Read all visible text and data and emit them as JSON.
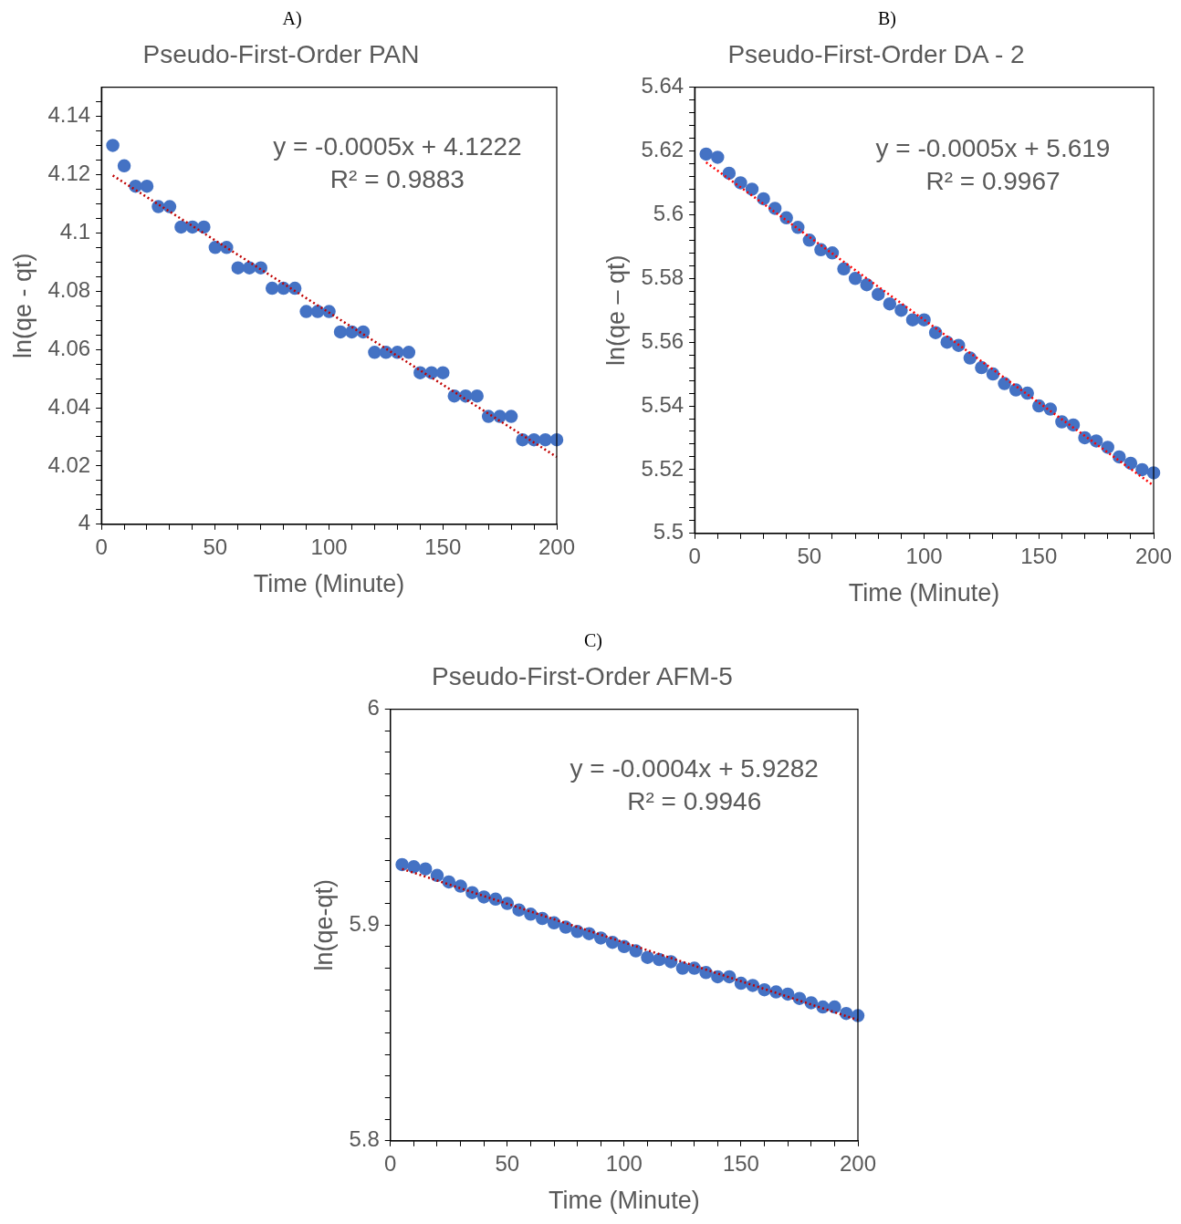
{
  "chart_data": [
    {
      "type": "scatter",
      "title": "Pseudo-First-Order PAN",
      "xlabel": "Time (Minute)",
      "ylabel": "ln(qe - qt)",
      "annotations": [
        "A)",
        "y = -0.0005x + 4.1222",
        "R² = 0.9883"
      ],
      "xlim": [
        0,
        200
      ],
      "xticks": [
        0,
        {
          "value": 10,
          "label": null
        },
        {
          "value": 20,
          "label": null
        },
        {
          "value": 30,
          "label": null
        },
        {
          "value": 40,
          "label": null
        },
        50,
        {
          "value": 60,
          "label": null
        },
        {
          "value": 70,
          "label": null
        },
        {
          "value": 80,
          "label": null
        },
        {
          "value": 90,
          "label": null
        },
        100,
        {
          "value": 110,
          "label": null
        },
        {
          "value": 120,
          "label": null
        },
        {
          "value": 130,
          "label": null
        },
        {
          "value": 140,
          "label": null
        },
        150,
        {
          "value": 160,
          "label": null
        },
        {
          "value": 170,
          "label": null
        },
        {
          "value": 180,
          "label": null
        },
        {
          "value": 190,
          "label": null
        },
        200
      ],
      "ylim": [
        4,
        4.15
      ],
      "yticks": [
        4,
        {
          "value": 4.005,
          "label": null
        },
        {
          "value": 4.01,
          "label": null
        },
        {
          "value": 4.015,
          "label": null
        },
        4.02,
        {
          "value": 4.025,
          "label": null
        },
        {
          "value": 4.03,
          "label": null
        },
        {
          "value": 4.035,
          "label": null
        },
        4.04,
        {
          "value": 4.045,
          "label": null
        },
        {
          "value": 4.05,
          "label": null
        },
        {
          "value": 4.055,
          "label": null
        },
        4.06,
        {
          "value": 4.065,
          "label": null
        },
        {
          "value": 4.07,
          "label": null
        },
        {
          "value": 4.075,
          "label": null
        },
        4.08,
        {
          "value": 4.085,
          "label": null
        },
        {
          "value": 4.09,
          "label": null
        },
        {
          "value": 4.095,
          "label": null
        },
        4.1,
        {
          "value": 4.105,
          "label": null
        },
        {
          "value": 4.11,
          "label": null
        },
        {
          "value": 4.115,
          "label": null
        },
        4.12,
        {
          "value": 4.125,
          "label": null
        },
        {
          "value": 4.13,
          "label": null
        },
        {
          "value": 4.135,
          "label": null
        },
        4.14,
        {
          "value": 4.145,
          "label": null
        }
      ],
      "legend": false,
      "grid": false,
      "series": [
        {
          "type": "scatter",
          "color": "#4472c4",
          "marker": "circle",
          "x": [
            5,
            10,
            15,
            20,
            25,
            30,
            35,
            40,
            45,
            50,
            55,
            60,
            65,
            70,
            75,
            80,
            85,
            90,
            95,
            100,
            105,
            110,
            115,
            120,
            125,
            130,
            135,
            140,
            145,
            150,
            155,
            160,
            165,
            170,
            175,
            180,
            185,
            190,
            195,
            200
          ],
          "values": [
            4.13,
            4.123,
            4.116,
            4.116,
            4.109,
            4.109,
            4.102,
            4.102,
            4.102,
            4.095,
            4.095,
            4.088,
            4.088,
            4.088,
            4.081,
            4.081,
            4.081,
            4.073,
            4.073,
            4.073,
            4.066,
            4.066,
            4.066,
            4.059,
            4.059,
            4.059,
            4.059,
            4.052,
            4.052,
            4.052,
            4.044,
            4.044,
            4.044,
            4.037,
            4.037,
            4.037,
            4.029,
            4.029,
            4.029,
            4.029
          ]
        },
        {
          "type": "line",
          "color": "#c00000",
          "marker": "none",
          "line_style": "dotted",
          "x": [
            5,
            200
          ],
          "values": [
            4.1197,
            4.0231
          ]
        }
      ]
    },
    {
      "type": "scatter",
      "title": "Pseudo-First-Order DA - 2",
      "xlabel": "Time (Minute)",
      "ylabel": "ln(qe – qt)",
      "annotations": [
        "B)",
        "y = -0.0005x + 5.619",
        "R² = 0.9967"
      ],
      "xlim": [
        0,
        200
      ],
      "xticks": [
        0,
        {
          "value": 10,
          "label": null
        },
        {
          "value": 20,
          "label": null
        },
        {
          "value": 30,
          "label": null
        },
        {
          "value": 40,
          "label": null
        },
        50,
        {
          "value": 60,
          "label": null
        },
        {
          "value": 70,
          "label": null
        },
        {
          "value": 80,
          "label": null
        },
        {
          "value": 90,
          "label": null
        },
        100,
        {
          "value": 110,
          "label": null
        },
        {
          "value": 120,
          "label": null
        },
        {
          "value": 130,
          "label": null
        },
        {
          "value": 140,
          "label": null
        },
        150,
        {
          "value": 160,
          "label": null
        },
        {
          "value": 170,
          "label": null
        },
        {
          "value": 180,
          "label": null
        },
        {
          "value": 190,
          "label": null
        },
        200
      ],
      "ylim": [
        5.5,
        5.64
      ],
      "yticks": [
        5.5,
        {
          "value": 5.504,
          "label": null
        },
        {
          "value": 5.508,
          "label": null
        },
        {
          "value": 5.512,
          "label": null
        },
        {
          "value": 5.516,
          "label": null
        },
        5.52,
        {
          "value": 5.524,
          "label": null
        },
        {
          "value": 5.528,
          "label": null
        },
        {
          "value": 5.532,
          "label": null
        },
        {
          "value": 5.536,
          "label": null
        },
        5.54,
        {
          "value": 5.544,
          "label": null
        },
        {
          "value": 5.548,
          "label": null
        },
        {
          "value": 5.552,
          "label": null
        },
        {
          "value": 5.556,
          "label": null
        },
        5.56,
        {
          "value": 5.564,
          "label": null
        },
        {
          "value": 5.568,
          "label": null
        },
        {
          "value": 5.572,
          "label": null
        },
        {
          "value": 5.576,
          "label": null
        },
        5.58,
        {
          "value": 5.584,
          "label": null
        },
        {
          "value": 5.588,
          "label": null
        },
        {
          "value": 5.592,
          "label": null
        },
        {
          "value": 5.596,
          "label": null
        },
        5.6,
        {
          "value": 5.604,
          "label": null
        },
        {
          "value": 5.608,
          "label": null
        },
        {
          "value": 5.612,
          "label": null
        },
        {
          "value": 5.616,
          "label": null
        },
        5.62,
        {
          "value": 5.624,
          "label": null
        },
        {
          "value": 5.628,
          "label": null
        },
        {
          "value": 5.632,
          "label": null
        },
        {
          "value": 5.636,
          "label": null
        },
        5.64
      ],
      "legend": false,
      "grid": false,
      "series": [
        {
          "type": "scatter",
          "color": "#4472c4",
          "marker": "circle",
          "x": [
            5,
            10,
            15,
            20,
            25,
            30,
            35,
            40,
            45,
            50,
            55,
            60,
            65,
            70,
            75,
            80,
            85,
            90,
            95,
            100,
            105,
            110,
            115,
            120,
            125,
            130,
            135,
            140,
            145,
            150,
            155,
            160,
            165,
            170,
            175,
            180,
            185,
            190,
            195,
            200
          ],
          "values": [
            5.619,
            5.618,
            5.613,
            5.61,
            5.608,
            5.605,
            5.602,
            5.599,
            5.596,
            5.592,
            5.589,
            5.588,
            5.583,
            5.58,
            5.578,
            5.575,
            5.572,
            5.57,
            5.567,
            5.567,
            5.563,
            5.56,
            5.559,
            5.555,
            5.552,
            5.55,
            5.547,
            5.545,
            5.544,
            5.54,
            5.539,
            5.535,
            5.534,
            5.53,
            5.529,
            5.527,
            5.524,
            5.522,
            5.52,
            5.519
          ]
        },
        {
          "type": "line",
          "color": "#ff0000",
          "marker": "none",
          "line_style": "dotted",
          "x": [
            5,
            200
          ],
          "values": [
            5.6164,
            5.515
          ]
        }
      ]
    },
    {
      "type": "scatter",
      "title": "Pseudo-First-Order AFM-5",
      "xlabel": "Time (Minute)",
      "ylabel": "ln(qe-qt)",
      "annotations": [
        "C)",
        "y = -0.0004x + 5.9282",
        "R² = 0.9946"
      ],
      "xlim": [
        0,
        200
      ],
      "xticks": [
        0,
        {
          "value": 10,
          "label": null
        },
        {
          "value": 20,
          "label": null
        },
        {
          "value": 30,
          "label": null
        },
        {
          "value": 40,
          "label": null
        },
        50,
        {
          "value": 60,
          "label": null
        },
        {
          "value": 70,
          "label": null
        },
        {
          "value": 80,
          "label": null
        },
        {
          "value": 90,
          "label": null
        },
        100,
        {
          "value": 110,
          "label": null
        },
        {
          "value": 120,
          "label": null
        },
        {
          "value": 130,
          "label": null
        },
        {
          "value": 140,
          "label": null
        },
        150,
        {
          "value": 160,
          "label": null
        },
        {
          "value": 170,
          "label": null
        },
        {
          "value": 180,
          "label": null
        },
        {
          "value": 190,
          "label": null
        },
        200
      ],
      "ylim": [
        5.8,
        6
      ],
      "yticks": [
        5.8,
        {
          "value": 5.81,
          "label": null
        },
        {
          "value": 5.82,
          "label": null
        },
        {
          "value": 5.83,
          "label": null
        },
        {
          "value": 5.84,
          "label": null
        },
        {
          "value": 5.85,
          "label": null
        },
        {
          "value": 5.86,
          "label": null
        },
        {
          "value": 5.87,
          "label": null
        },
        {
          "value": 5.88,
          "label": null
        },
        {
          "value": 5.89,
          "label": null
        },
        5.9,
        {
          "value": 5.91,
          "label": null
        },
        {
          "value": 5.92,
          "label": null
        },
        {
          "value": 5.93,
          "label": null
        },
        {
          "value": 5.94,
          "label": null
        },
        {
          "value": 5.95,
          "label": null
        },
        {
          "value": 5.96,
          "label": null
        },
        {
          "value": 5.97,
          "label": null
        },
        {
          "value": 5.98,
          "label": null
        },
        {
          "value": 5.99,
          "label": null
        },
        6
      ],
      "legend": false,
      "grid": false,
      "series": [
        {
          "type": "scatter",
          "color": "#4472c4",
          "marker": "circle",
          "x": [
            5,
            10,
            15,
            20,
            25,
            30,
            35,
            40,
            45,
            50,
            55,
            60,
            65,
            70,
            75,
            80,
            85,
            90,
            95,
            100,
            105,
            110,
            115,
            120,
            125,
            130,
            135,
            140,
            145,
            150,
            155,
            160,
            165,
            170,
            175,
            180,
            185,
            190,
            195,
            200
          ],
          "values": [
            5.928,
            5.927,
            5.926,
            5.923,
            5.92,
            5.918,
            5.915,
            5.913,
            5.912,
            5.91,
            5.907,
            5.905,
            5.903,
            5.901,
            5.899,
            5.897,
            5.896,
            5.894,
            5.892,
            5.89,
            5.888,
            5.885,
            5.884,
            5.883,
            5.88,
            5.88,
            5.878,
            5.876,
            5.876,
            5.873,
            5.872,
            5.87,
            5.869,
            5.868,
            5.866,
            5.864,
            5.862,
            5.862,
            5.859,
            5.858
          ]
        },
        {
          "type": "line",
          "color": "#c00000",
          "marker": "none",
          "line_style": "dotted",
          "x": [
            5,
            200
          ],
          "values": [
            5.926,
            5.856
          ]
        }
      ]
    }
  ]
}
